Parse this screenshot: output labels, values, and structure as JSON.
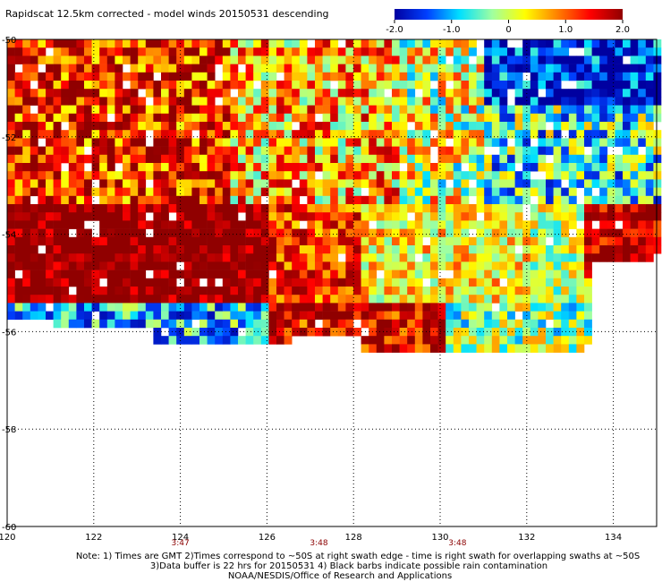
{
  "title": "Rapidscat 12.5km corrected - model winds 20150531 descending",
  "colorbar": {
    "ticks": [
      "-2.0",
      "-1.0",
      "0",
      "1.0",
      "2.0"
    ],
    "range": [
      -2.0,
      2.0
    ],
    "colors": [
      "#0000a0",
      "#0040ff",
      "#00e0ff",
      "#a0ffa0",
      "#ffff00",
      "#ff8000",
      "#ff0000",
      "#900000"
    ]
  },
  "map": {
    "lon_range": [
      120,
      135
    ],
    "lat_range": [
      -60,
      -50
    ],
    "lon_ticks": [
      "120",
      "122",
      "124",
      "126",
      "128",
      "130",
      "132",
      "134"
    ],
    "lat_ticks": [
      "-50",
      "-52",
      "-54",
      "-56",
      "-58",
      "-60"
    ],
    "grid": "dotted",
    "swath_times": [
      {
        "label": "3:47",
        "lon": 124
      },
      {
        "label": "3:48",
        "lon": 127.2
      },
      {
        "label": "3:48",
        "lon": 130.4
      }
    ]
  },
  "notes": {
    "line1": "Note: 1) Times are GMT 2)Times correspond to ~50S at right swath edge - time is right swath for overlapping swaths at ~50S",
    "line2": "3)Data buffer is 22 hrs for 20150531 4) Black barbs indicate possible rain contamination",
    "line3": "NOAA/NESDIS/Office of Research and Applications"
  }
}
